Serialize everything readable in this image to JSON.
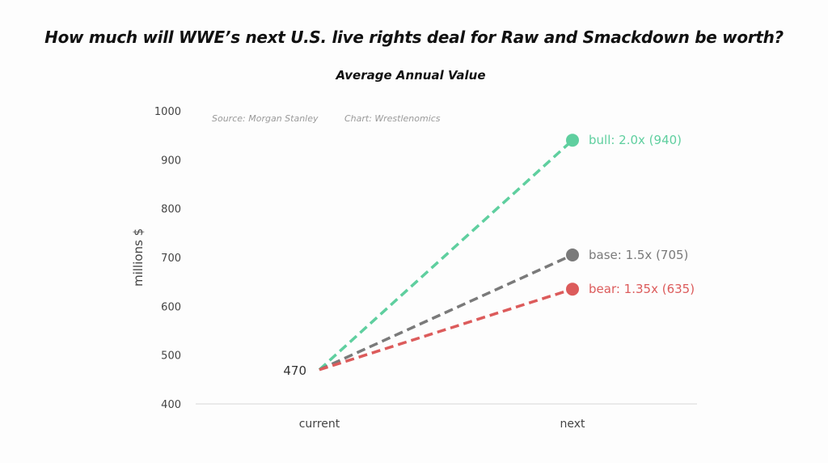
{
  "chart_data": {
    "type": "line",
    "title": "How much will WWE’s next U.S. live rights deal for Raw and Smackdown be worth?",
    "subtitle": "Average Annual Value",
    "ylabel": "millions $",
    "xlabel": "",
    "categories": [
      "current",
      "next"
    ],
    "ylim": [
      400,
      1000
    ],
    "yticks": [
      400,
      500,
      600,
      700,
      800,
      900,
      1000
    ],
    "grid": false,
    "start_label": "470",
    "credits": {
      "source": "Source: Morgan Stanley",
      "chart": "Chart: Wrestlenomics"
    },
    "series": [
      {
        "label": "bull: 2.0x (940)",
        "values": [
          470,
          940
        ],
        "color": "#5fcf9f"
      },
      {
        "label": "base: 1.5x (705)",
        "values": [
          470,
          705
        ],
        "color": "#7a7a7a"
      },
      {
        "label": "bear: 1.35x (635)",
        "values": [
          470,
          635
        ],
        "color": "#dc5b5b"
      }
    ]
  }
}
